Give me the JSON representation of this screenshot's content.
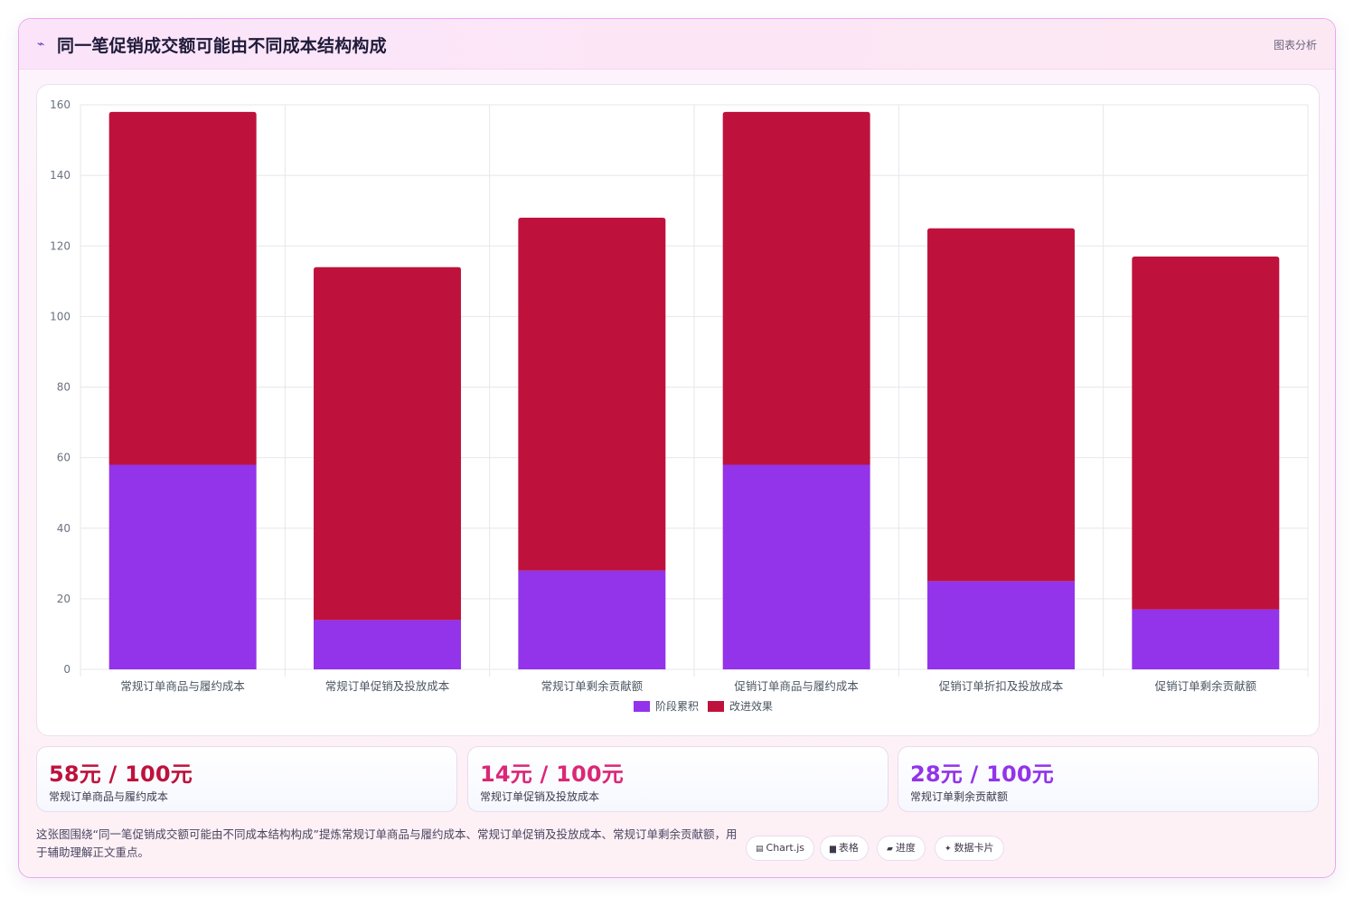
{
  "header": {
    "title": "同一笔促销成交额可能由不同成本结构构成",
    "action_label": "图表分析",
    "icon": "sparkline-icon"
  },
  "colors": {
    "stage": "#9333ea",
    "improve": "#be123c",
    "stat1": "#be123c",
    "stat2": "#db2777",
    "stat3": "#9333ea"
  },
  "chart_data": {
    "type": "bar",
    "stacked": true,
    "categories": [
      "常规订单商品与履约成本",
      "常规订单促销及投放成本",
      "常规订单剩余贡献额",
      "促销订单商品与履约成本",
      "促销订单折扣及投放成本",
      "促销订单剩余贡献额"
    ],
    "series": [
      {
        "name": "阶段累积",
        "values": [
          58,
          14,
          28,
          58,
          25,
          17
        ]
      },
      {
        "name": "改进效果",
        "values": [
          100,
          100,
          100,
          100,
          100,
          100
        ]
      }
    ],
    "ylim": [
      0,
      160
    ],
    "yticks": [
      0,
      20,
      40,
      60,
      80,
      100,
      120,
      140,
      160
    ],
    "grid": true,
    "legend": "bottom"
  },
  "stats": [
    {
      "value": "58元 / 100元",
      "label": "常规订单商品与履约成本"
    },
    {
      "value": "14元 / 100元",
      "label": "常规订单促销及投放成本"
    },
    {
      "value": "28元 / 100元",
      "label": "常规订单剩余贡献额"
    }
  ],
  "description": "这张图围绕“同一笔促销成交额可能由不同成本结构构成”提炼常规订单商品与履约成本、常规订单促销及投放成本、常规订单剩余贡献额，用于辅助理解正文重点。",
  "tags": [
    {
      "label": "Chart.js",
      "icon": "chart-icon"
    },
    {
      "label": "表格",
      "icon": "table-icon"
    },
    {
      "label": "进度",
      "icon": "progress-icon"
    },
    {
      "label": "数据卡片",
      "icon": "sparkle-icon"
    }
  ]
}
